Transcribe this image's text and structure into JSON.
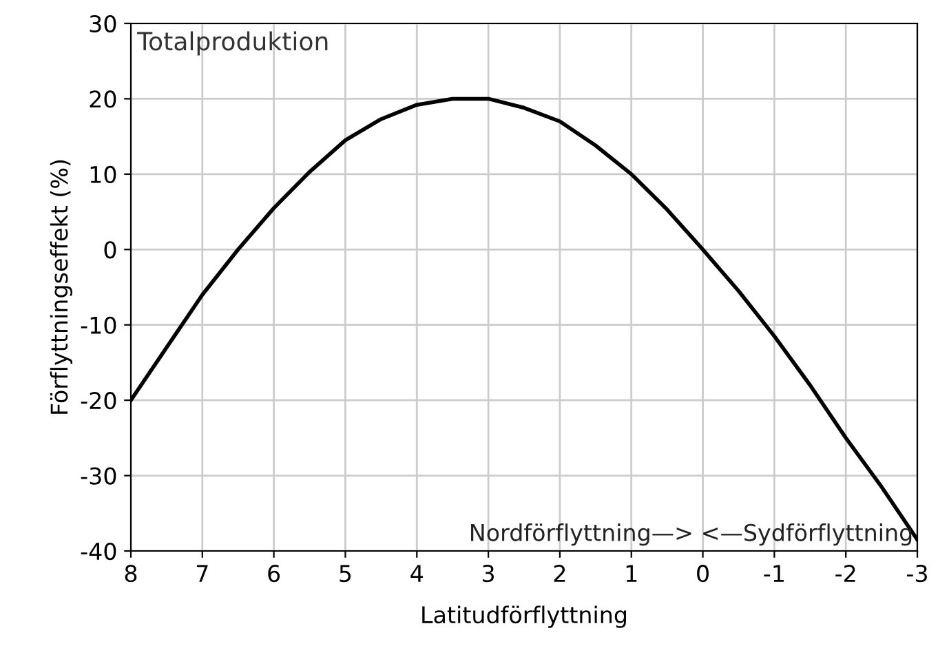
{
  "chart_data": {
    "type": "line",
    "xlabel": "Latitudförflyttning",
    "ylabel": "Förflyttningseffekt (%)",
    "annotations": [
      "Totalproduktion",
      "Nordförflyttning—> <—Sydförflyttning"
    ],
    "x": [
      8,
      7.5,
      7,
      6.5,
      6,
      5.5,
      5,
      4.5,
      4,
      3.5,
      3,
      2.5,
      2,
      1.5,
      1,
      0.5,
      0,
      -0.5,
      -1,
      -1.5,
      -2,
      -2.5,
      -3
    ],
    "series": [
      {
        "color": "#000000",
        "values": [
          -20,
          -13,
          -6,
          0,
          5.5,
          10.3,
          14.5,
          17.3,
          19.2,
          20,
          20,
          18.8,
          17,
          13.8,
          10,
          5.3,
          0,
          -5.5,
          -11.5,
          -18,
          -25,
          -31.5,
          -38.5
        ]
      }
    ],
    "xlim": [
      8,
      -3
    ],
    "xticks": [
      8,
      7,
      6,
      5,
      4,
      3,
      2,
      1,
      0,
      -1,
      -2,
      -3
    ],
    "ylim": [
      -40,
      30
    ],
    "yticks": [
      -40,
      -30,
      -20,
      -10,
      0,
      10,
      20,
      30
    ],
    "grid": true,
    "legend": false
  }
}
